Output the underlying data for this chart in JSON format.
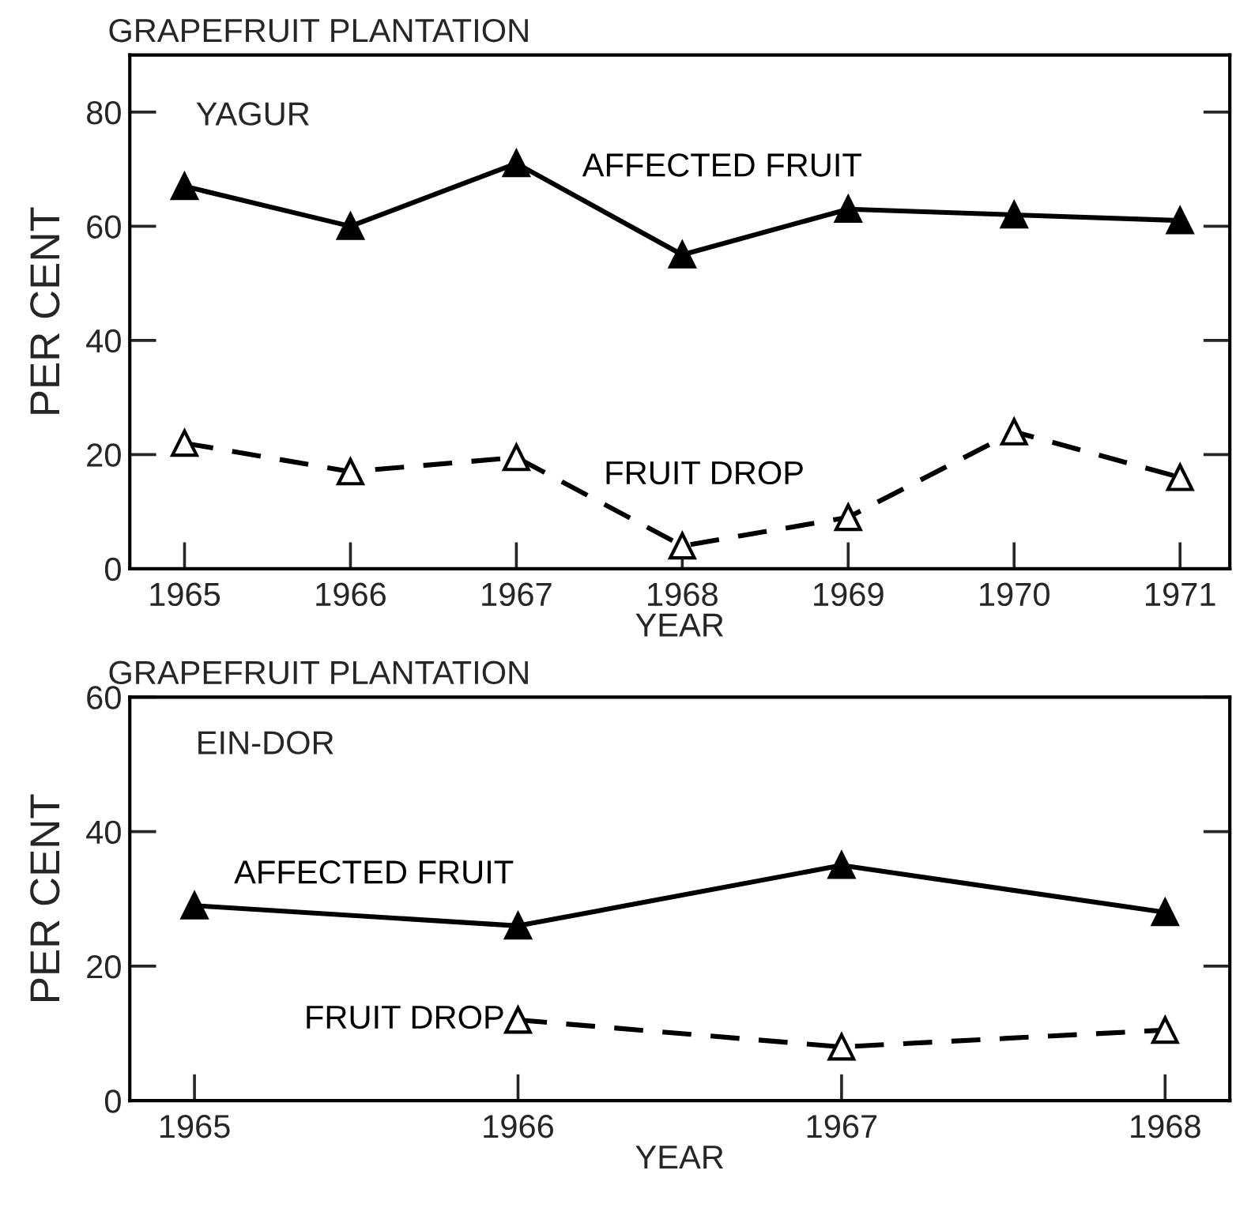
{
  "chart_data": [
    {
      "type": "line",
      "title": "GRAPEFRUIT PLANTATION",
      "xlabel": "YEAR",
      "ylabel": "PER CENT",
      "annotations": [
        "YAGUR"
      ],
      "x": [
        1965,
        1966,
        1967,
        1968,
        1969,
        1970,
        1971
      ],
      "series": [
        {
          "name": "AFFECTED FRUIT",
          "color": "#000000",
          "line_style": "solid",
          "values": [
            67,
            60,
            71,
            55,
            63,
            62,
            61
          ]
        },
        {
          "name": "FRUIT DROP",
          "color": "#000000",
          "line_style": "dashed",
          "values": [
            22,
            17,
            19.5,
            4,
            9,
            24,
            16
          ]
        }
      ],
      "marker": "triangle",
      "xlim": [
        1964.67,
        1971.3
      ],
      "xticks": [
        1965,
        1966,
        1967,
        1968,
        1969,
        1970,
        1971
      ],
      "ylim": [
        0,
        90
      ],
      "yticks": [
        0,
        20,
        40,
        60,
        80
      ],
      "grid": false,
      "legend": false
    },
    {
      "type": "line",
      "title": "GRAPEFRUIT PLANTATION",
      "xlabel": "YEAR",
      "ylabel": "PER CENT",
      "annotations": [
        "EIN-DOR"
      ],
      "x": [
        1965,
        1966,
        1967,
        1968
      ],
      "series": [
        {
          "name": "AFFECTED FRUIT",
          "color": "#000000",
          "line_style": "solid",
          "values": [
            29,
            26,
            35,
            28
          ]
        },
        {
          "name": "FRUIT DROP",
          "color": "#000000",
          "line_style": "dashed",
          "x": [
            1966,
            1967,
            1968
          ],
          "values": [
            12,
            8,
            10.5
          ]
        }
      ],
      "marker": "triangle",
      "xlim": [
        1964.8,
        1968.2
      ],
      "xticks": [
        1965,
        1966,
        1967,
        1968
      ],
      "ylim": [
        0,
        60
      ],
      "yticks": [
        0,
        20,
        40,
        60
      ],
      "grid": false,
      "legend": false
    }
  ]
}
